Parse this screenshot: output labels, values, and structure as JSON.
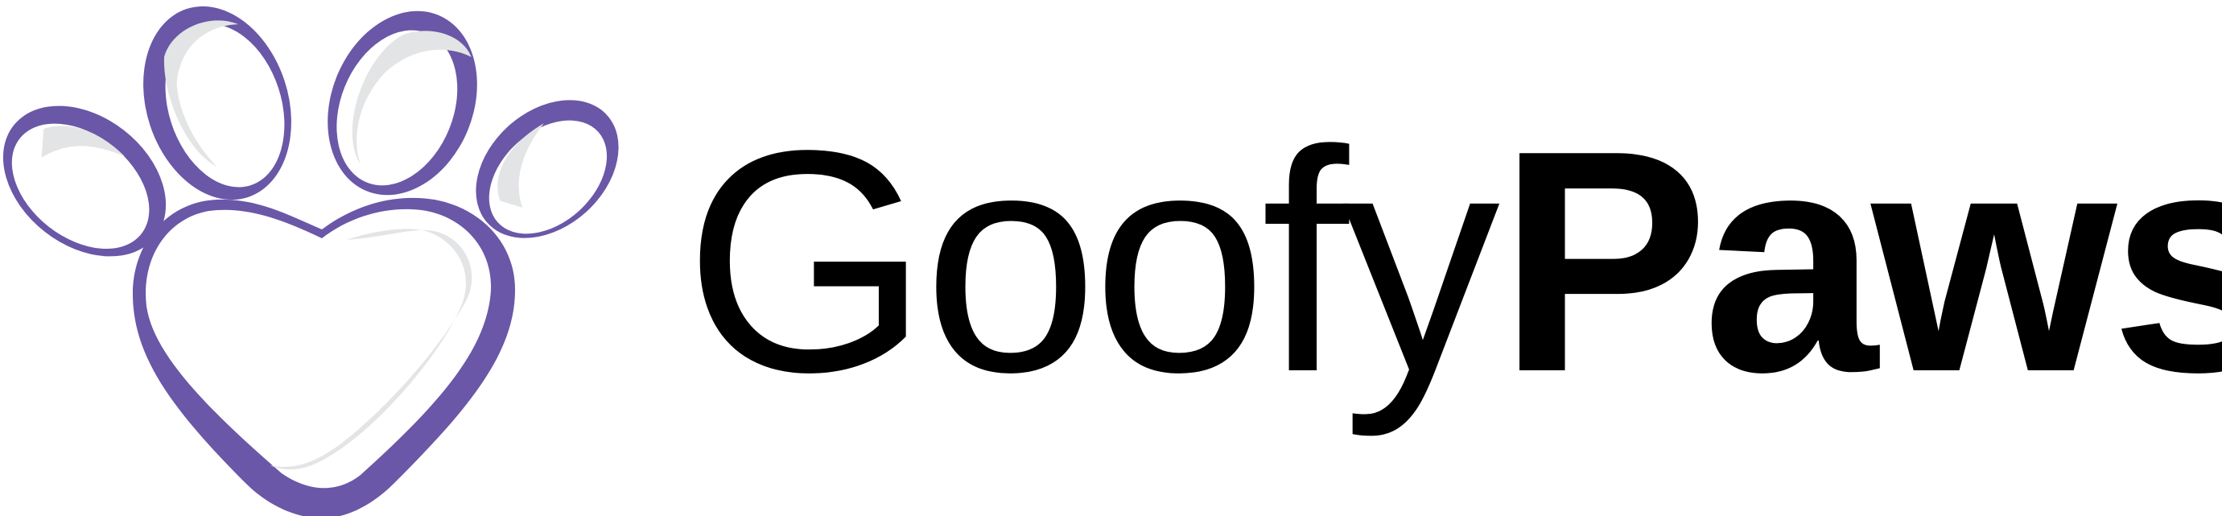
{
  "brand": {
    "word_light": "Goofy",
    "word_bold": "Paws"
  },
  "colors": {
    "paw_outline": "#6a57a7",
    "paw_shadow": "#e3e4e5",
    "paw_fill": "#ffffff",
    "text": "#000000",
    "background": "#ffffff"
  },
  "icons": {
    "logo_mark": "paw-print-icon"
  }
}
